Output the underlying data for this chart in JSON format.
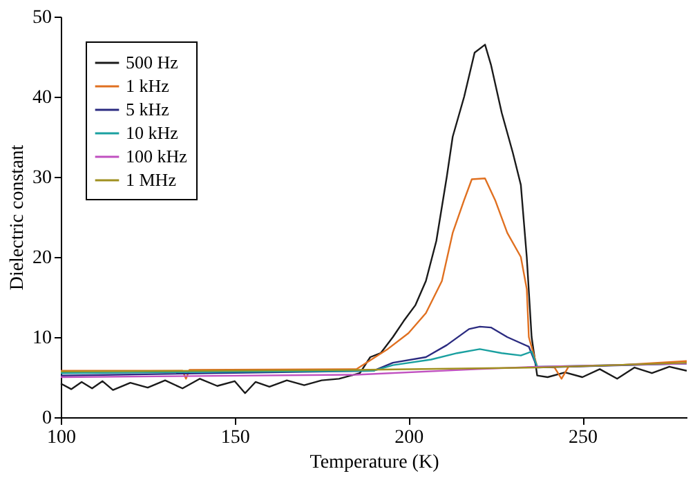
{
  "chart_data": {
    "type": "line",
    "xlabel": "Temperature (K)",
    "ylabel": "Dielectric constant",
    "xlim": [
      100,
      280
    ],
    "ylim": [
      0,
      50
    ],
    "xticks": [
      100,
      150,
      200,
      250
    ],
    "yticks": [
      0,
      10,
      20,
      30,
      40,
      50
    ],
    "grid": false,
    "legend": "top left",
    "marker": "none",
    "line_style": "solid",
    "series": [
      {
        "name": "500 Hz",
        "color": "#1a1a1a",
        "x": [
          100,
          103,
          106,
          109,
          112,
          115,
          120,
          125,
          130,
          135,
          140,
          145,
          150,
          153,
          156,
          160,
          165,
          170,
          175,
          180,
          186,
          189,
          192,
          195.5,
          198.6,
          202,
          205,
          208,
          211,
          212.7,
          216,
          219,
          222,
          223.7,
          226.8,
          230,
          232.3,
          234,
          235.4,
          237,
          240,
          245,
          250,
          255,
          260,
          265,
          270,
          275,
          280
        ],
        "values": [
          4.2,
          3.5,
          4.4,
          3.6,
          4.5,
          3.4,
          4.3,
          3.7,
          4.6,
          3.6,
          4.8,
          3.9,
          4.5,
          3.0,
          4.4,
          3.8,
          4.6,
          4.0,
          4.6,
          4.8,
          5.5,
          7.5,
          8.0,
          10,
          12,
          14,
          17,
          22,
          30,
          35,
          40,
          45.5,
          46.5,
          44,
          38,
          33,
          29,
          20,
          10,
          5.2,
          5.0,
          5.6,
          5.0,
          6.0,
          4.8,
          6.2,
          5.5,
          6.3,
          5.8
        ]
      },
      {
        "name": "1 kHz",
        "color": "#e07020",
        "x": [
          100,
          135,
          136,
          137,
          185,
          194,
          200,
          205,
          209.6,
          212.7,
          215.9,
          218.2,
          222,
          225,
          228.4,
          232.3,
          234,
          234.6,
          237,
          242,
          244,
          246,
          260,
          280
        ],
        "values": [
          5.8,
          5.8,
          4.8,
          5.9,
          6.0,
          8.5,
          10.5,
          13,
          17,
          23,
          27,
          29.7,
          29.8,
          27,
          23,
          20,
          16,
          10,
          6.3,
          6.2,
          4.8,
          6.3,
          6.5,
          7.0
        ]
      },
      {
        "name": "5 kHz",
        "color": "#2b2b80",
        "x": [
          100,
          190,
          195.5,
          205,
          211,
          217.4,
          220.5,
          223.7,
          228.4,
          234.6,
          237,
          280
        ],
        "values": [
          5.2,
          5.8,
          6.8,
          7.5,
          9,
          11,
          11.3,
          11.2,
          10,
          8.8,
          6.2,
          6.7
        ]
      },
      {
        "name": "10 kHz",
        "color": "#1aa0a0",
        "x": [
          100,
          190,
          195.5,
          206.5,
          214,
          220.5,
          226.8,
          232.3,
          235.4,
          237,
          280
        ],
        "values": [
          5.5,
          5.8,
          6.5,
          7.2,
          8,
          8.5,
          8,
          7.7,
          8.2,
          6.3,
          6.7
        ]
      },
      {
        "name": "100 kHz",
        "color": "#c050c0",
        "x": [
          100,
          185,
          220,
          237,
          280
        ],
        "values": [
          5.0,
          5.3,
          6.0,
          6.3,
          6.7
        ]
      },
      {
        "name": "1 MHz",
        "color": "#a09020",
        "x": [
          100,
          185,
          237,
          280
        ],
        "values": [
          5.7,
          5.9,
          6.2,
          6.8
        ]
      }
    ]
  }
}
